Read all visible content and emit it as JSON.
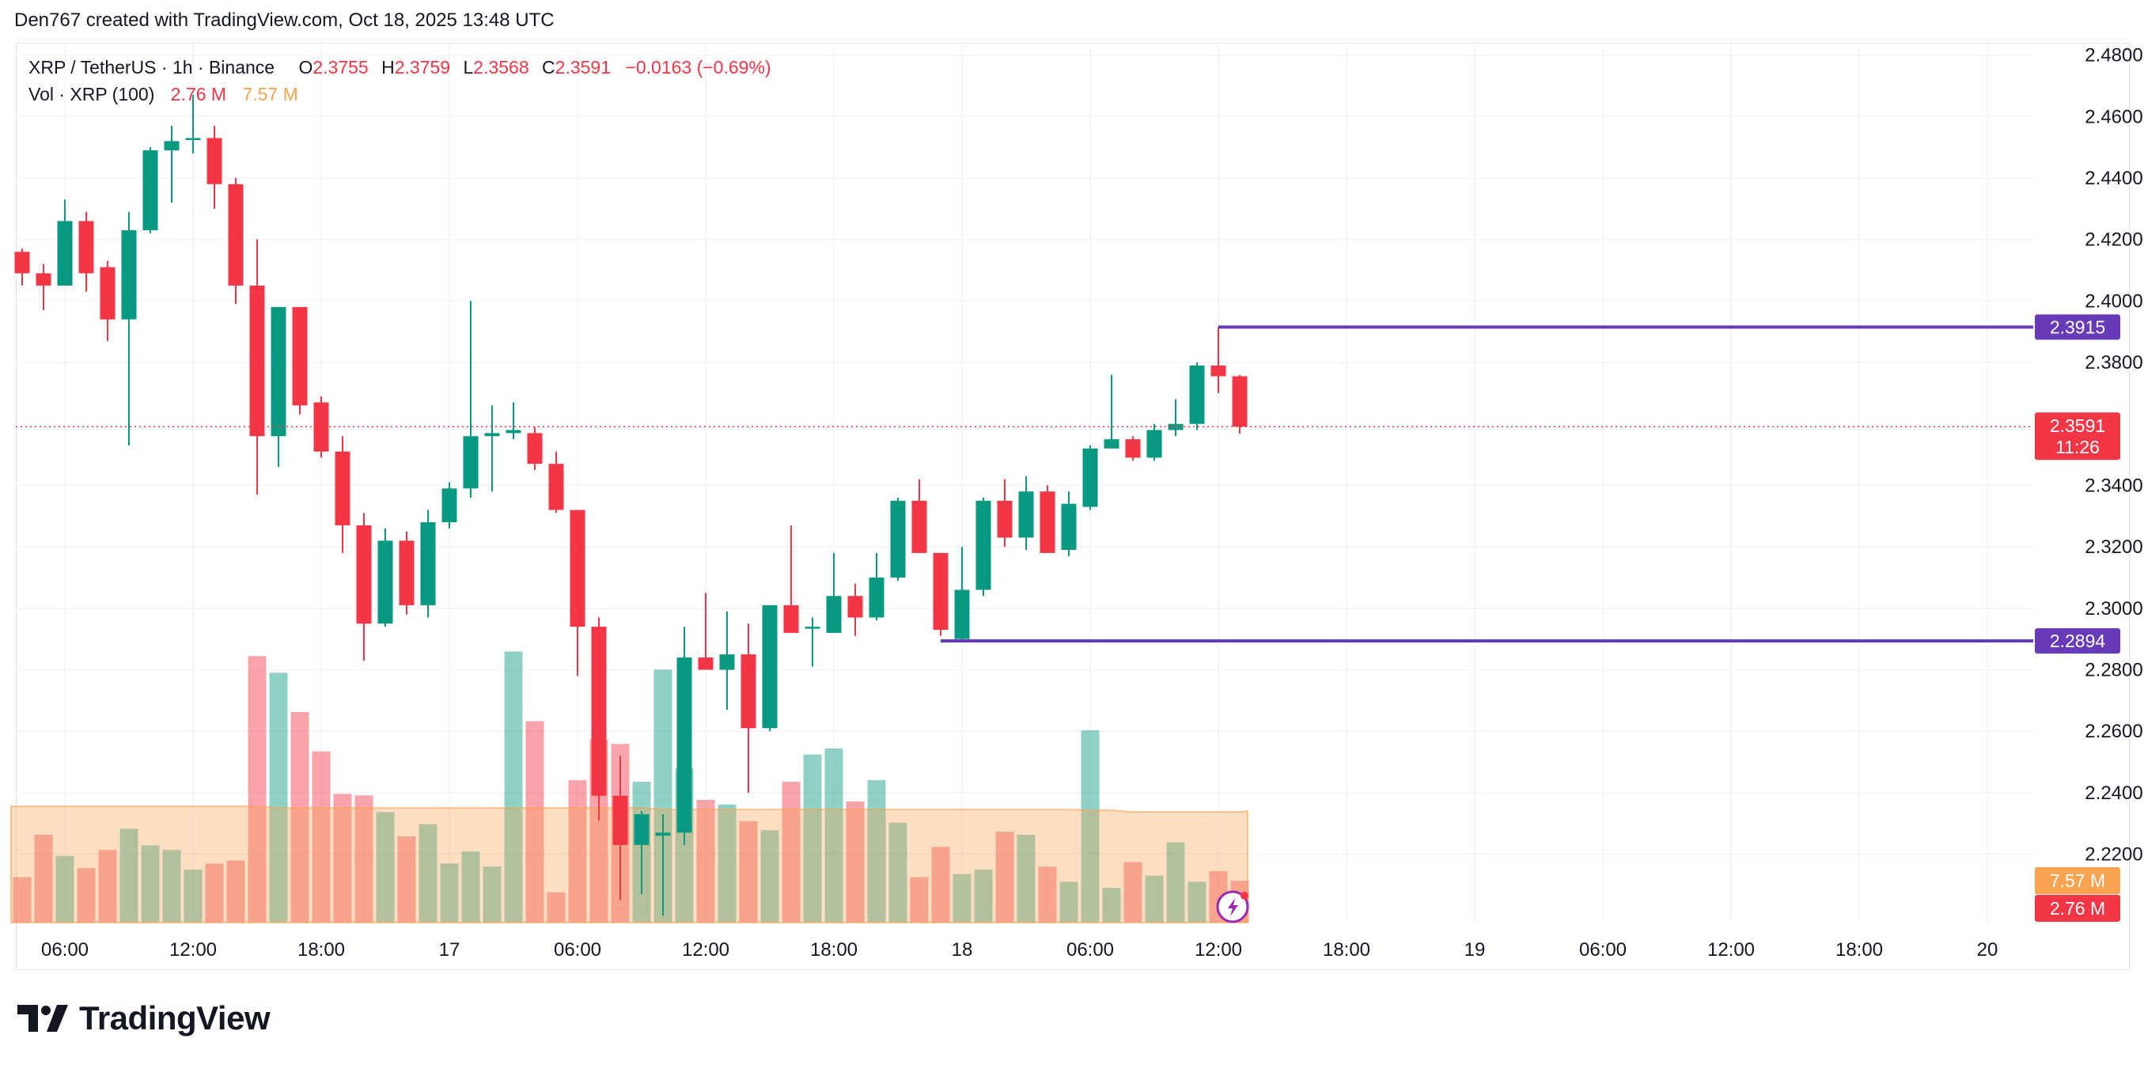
{
  "attribution": "Den767 created with TradingView.com, Oct 18, 2025 13:48 UTC",
  "brand": {
    "name": "TradingView",
    "logo_icon": "tradingview-logo-icon"
  },
  "legend": {
    "symbol": "XRP / TetherUS · 1h · Binance",
    "open_label": "O",
    "open": "2.3755",
    "high_label": "H",
    "high": "2.3759",
    "low_label": "L",
    "low": "2.3568",
    "close_label": "C",
    "close": "2.3591",
    "change": "−0.0163 (−0.69%)",
    "vol_label": "Vol · XRP (100)",
    "vol_value": "2.76 M",
    "vol_ma": "7.57 M"
  },
  "colors": {
    "up": "#089981",
    "down": "#f23645",
    "level": "#673ab7",
    "volume_ma": "#f7a350",
    "grid": "#f0f3fa"
  },
  "chart_data": {
    "type": "candlestick",
    "title": "XRP / TetherUS · 1h · Binance",
    "xlabel": "",
    "ylabel": "",
    "ylim": [
      2.198,
      2.4835
    ],
    "y_ticks": [
      "2.4800",
      "2.4600",
      "2.4400",
      "2.4200",
      "2.4000",
      "2.3800",
      "2.3400",
      "2.3200",
      "2.3000",
      "2.2800",
      "2.2600",
      "2.2400",
      "2.2200"
    ],
    "x_ticks": [
      {
        "i": 2,
        "label": "06:00"
      },
      {
        "i": 8,
        "label": "12:00"
      },
      {
        "i": 14,
        "label": "18:00"
      },
      {
        "i": 20,
        "label": "17"
      },
      {
        "i": 26,
        "label": "06:00"
      },
      {
        "i": 32,
        "label": "12:00"
      },
      {
        "i": 38,
        "label": "18:00"
      },
      {
        "i": 44,
        "label": "18"
      },
      {
        "i": 50,
        "label": "06:00"
      },
      {
        "i": 56,
        "label": "12:00"
      },
      {
        "i": 62,
        "label": "18:00"
      },
      {
        "i": 68,
        "label": "19"
      },
      {
        "i": 74,
        "label": "06:00"
      },
      {
        "i": 80,
        "label": "12:00"
      },
      {
        "i": 86,
        "label": "18:00"
      },
      {
        "i": 92,
        "label": "20"
      }
    ],
    "ohlc": [
      [
        2.416,
        2.417,
        2.405,
        2.409
      ],
      [
        2.409,
        2.412,
        2.397,
        2.405
      ],
      [
        2.405,
        2.433,
        2.405,
        2.426
      ],
      [
        2.426,
        2.429,
        2.403,
        2.409
      ],
      [
        2.411,
        2.413,
        2.387,
        2.394
      ],
      [
        2.394,
        2.429,
        2.353,
        2.423
      ],
      [
        2.423,
        2.45,
        2.422,
        2.449
      ],
      [
        2.449,
        2.457,
        2.432,
        2.452
      ],
      [
        2.453,
        2.467,
        2.448,
        2.453
      ],
      [
        2.453,
        2.457,
        2.43,
        2.438
      ],
      [
        2.438,
        2.44,
        2.399,
        2.405
      ],
      [
        2.405,
        2.42,
        2.337,
        2.356
      ],
      [
        2.356,
        2.398,
        2.346,
        2.398
      ],
      [
        2.398,
        2.398,
        2.363,
        2.366
      ],
      [
        2.367,
        2.369,
        2.349,
        2.351
      ],
      [
        2.351,
        2.356,
        2.318,
        2.327
      ],
      [
        2.327,
        2.331,
        2.283,
        2.295
      ],
      [
        2.295,
        2.326,
        2.294,
        2.322
      ],
      [
        2.322,
        2.325,
        2.298,
        2.301
      ],
      [
        2.301,
        2.332,
        2.297,
        2.328
      ],
      [
        2.328,
        2.341,
        2.326,
        2.339
      ],
      [
        2.339,
        2.4,
        2.336,
        2.356
      ],
      [
        2.356,
        2.366,
        2.338,
        2.357
      ],
      [
        2.357,
        2.367,
        2.355,
        2.358
      ],
      [
        2.357,
        2.359,
        2.345,
        2.347
      ],
      [
        2.347,
        2.351,
        2.331,
        2.332
      ],
      [
        2.332,
        2.332,
        2.278,
        2.294
      ],
      [
        2.294,
        2.297,
        2.231,
        2.239
      ],
      [
        2.239,
        2.252,
        2.205,
        2.223
      ],
      [
        2.223,
        2.234,
        2.207,
        2.233
      ],
      [
        2.226,
        2.233,
        2.2,
        2.227
      ],
      [
        2.227,
        2.294,
        2.223,
        2.284
      ],
      [
        2.284,
        2.305,
        2.28,
        2.28
      ],
      [
        2.28,
        2.299,
        2.267,
        2.285
      ],
      [
        2.285,
        2.295,
        2.24,
        2.261
      ],
      [
        2.261,
        2.301,
        2.26,
        2.301
      ],
      [
        2.301,
        2.327,
        2.292,
        2.292
      ],
      [
        2.294,
        2.297,
        2.281,
        2.294
      ],
      [
        2.292,
        2.318,
        2.293,
        2.304
      ],
      [
        2.304,
        2.308,
        2.291,
        2.297
      ],
      [
        2.297,
        2.318,
        2.296,
        2.31
      ],
      [
        2.31,
        2.336,
        2.309,
        2.335
      ],
      [
        2.335,
        2.342,
        2.318,
        2.318
      ],
      [
        2.318,
        2.318,
        2.291,
        2.293
      ],
      [
        2.29,
        2.32,
        2.289,
        2.306
      ],
      [
        2.306,
        2.336,
        2.304,
        2.335
      ],
      [
        2.335,
        2.342,
        2.32,
        2.323
      ],
      [
        2.323,
        2.343,
        2.319,
        2.338
      ],
      [
        2.338,
        2.34,
        2.318,
        2.318
      ],
      [
        2.319,
        2.338,
        2.317,
        2.334
      ],
      [
        2.333,
        2.353,
        2.332,
        2.352
      ],
      [
        2.352,
        2.376,
        2.352,
        2.355
      ],
      [
        2.355,
        2.356,
        2.348,
        2.349
      ],
      [
        2.349,
        2.36,
        2.348,
        2.358
      ],
      [
        2.358,
        2.368,
        2.356,
        2.36
      ],
      [
        2.36,
        2.38,
        2.358,
        2.379
      ],
      [
        2.379,
        2.3915,
        2.37,
        2.3755
      ],
      [
        2.3755,
        2.3759,
        2.3568,
        2.3591
      ]
    ],
    "volume_m": [
      3.0,
      5.8,
      4.4,
      3.6,
      4.8,
      6.2,
      5.1,
      4.8,
      3.5,
      3.9,
      4.1,
      17.6,
      16.5,
      13.9,
      11.3,
      8.5,
      8.4,
      7.3,
      5.7,
      6.5,
      3.9,
      4.7,
      3.7,
      17.9,
      13.3,
      2.0,
      9.4,
      12.1,
      11.8,
      9.3,
      16.7,
      10.2,
      8.1,
      7.8,
      6.7,
      6.1,
      9.3,
      11.1,
      11.5,
      8.0,
      9.4,
      6.6,
      3.0,
      5.0,
      3.2,
      3.5,
      6.0,
      5.8,
      3.7,
      2.7,
      12.7,
      2.3,
      4.0,
      3.1,
      5.3,
      2.7,
      3.4,
      2.76
    ],
    "volume_ylim": [
      0,
      58
    ],
    "volume_ma_m": 7.57,
    "levels": [
      {
        "price": 2.3915,
        "label": "2.3915",
        "from_index": 56
      },
      {
        "price": 2.2894,
        "label": "2.2894",
        "from_index": 43
      }
    ],
    "last_price": {
      "price": 2.3591,
      "label": "2.3591",
      "countdown": "11:26"
    },
    "volume_badges": {
      "ma": "7.57 M",
      "last": "2.76 M"
    }
  }
}
